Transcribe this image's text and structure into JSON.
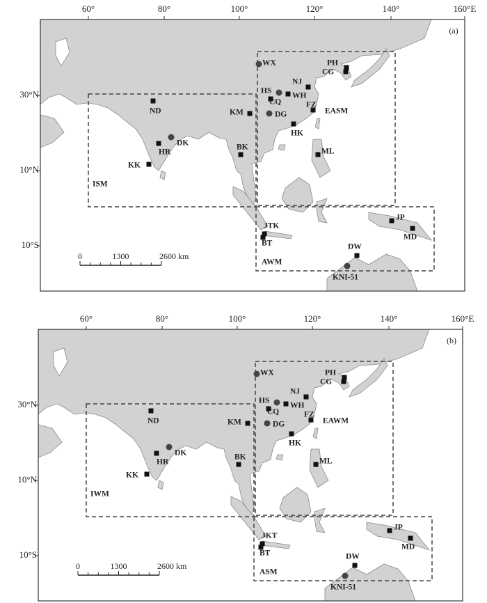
{
  "panels": [
    {
      "label": "(a)",
      "x_ticks": [
        "60°",
        "80°",
        "100°",
        "120°",
        "140°",
        "160°E"
      ],
      "y_ticks": [
        "30°N",
        "10°N",
        "10°S"
      ],
      "scale_bar": [
        "0",
        "1300",
        "2600 km"
      ],
      "sites": [
        "PH",
        "CG",
        "WX",
        "NJ",
        "HS",
        "WH",
        "CQ",
        "FZ",
        "DG",
        "KM",
        "HK",
        "ND",
        "DK",
        "HR",
        "KK",
        "BK",
        "ML",
        "JTK",
        "BT",
        "JP",
        "MD",
        "DW",
        "KNI-51"
      ],
      "regions": [
        "ISM",
        "EASM",
        "AWM"
      ]
    },
    {
      "label": "(b)",
      "x_ticks": [
        "60°",
        "80°",
        "100°",
        "120°",
        "140°",
        "160°E"
      ],
      "y_ticks": [
        "30°N",
        "10°N",
        "10°S"
      ],
      "scale_bar": [
        "0",
        "1300",
        "2600 km"
      ],
      "sites": [
        "PH",
        "CG",
        "WX",
        "NJ",
        "HS",
        "WH",
        "CQ",
        "FZ",
        "DG",
        "KM",
        "HK",
        "ND",
        "DK",
        "HR",
        "KK",
        "BK",
        "ML",
        "JKT",
        "BT",
        "JP",
        "MD",
        "DW",
        "KNI-51"
      ],
      "regions": [
        "IWM",
        "EAWM",
        "ASM"
      ]
    }
  ]
}
